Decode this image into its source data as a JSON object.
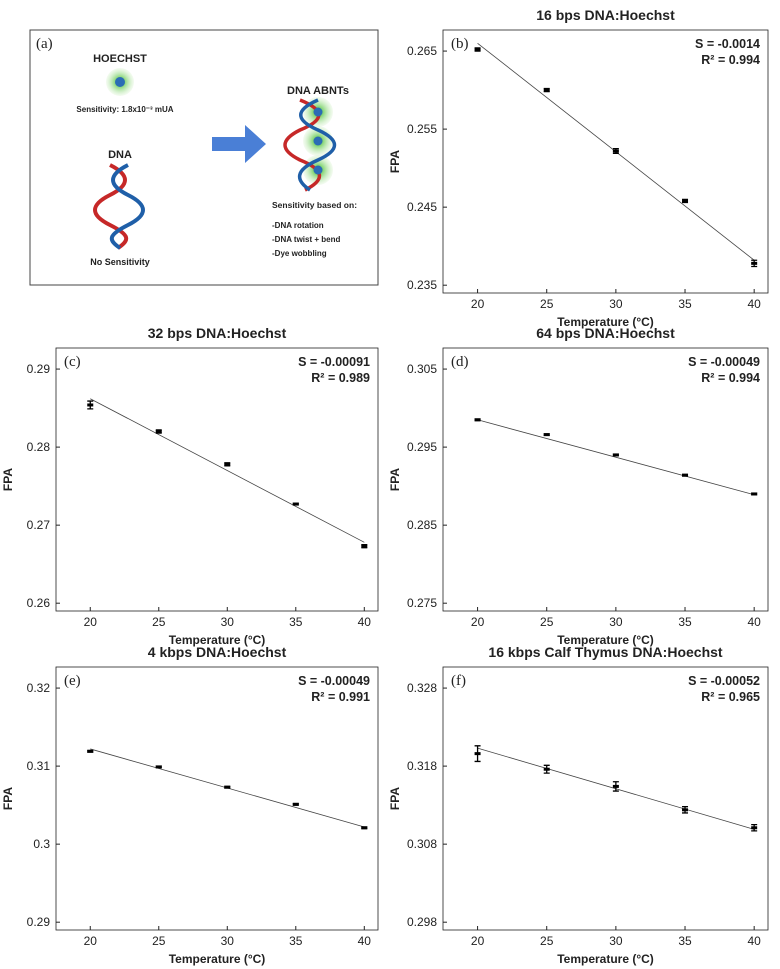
{
  "diagram": {
    "panel_label": "(a)",
    "dye_title": "HOECHST",
    "dye_sensitivity": "Sensitivity: 1.8x10⁻³ mUA",
    "dna_title": "DNA",
    "dna_sensitivity": "No Sensitivity",
    "complex_title": "DNA ABNTs",
    "basis_title": "Sensitivity based on:",
    "basis_items": [
      "-DNA rotation",
      "-DNA twist + bend",
      "-Dye wobbling"
    ]
  },
  "chart_data": [
    {
      "type": "scatter",
      "panel_label": "(b)",
      "title": "16 bps DNA:Hoechst",
      "x_label": "Temperature (°C)",
      "y_label": "FPA",
      "annotations": [
        "S = -0.0014",
        "R² = 0.994"
      ],
      "x": [
        20,
        25,
        30,
        35,
        40
      ],
      "values": [
        0.2652,
        0.26,
        0.2522,
        0.2458,
        0.2378
      ],
      "errors": [
        0.0002,
        0.0002,
        0.0003,
        0.0002,
        0.0004
      ],
      "fit_line": {
        "x": [
          20,
          40
        ],
        "values": [
          0.266,
          0.2382
        ]
      },
      "color": "#000000",
      "xlim": [
        17.5,
        41
      ],
      "xticks": [
        20,
        25,
        30,
        35,
        40
      ],
      "ylim": [
        0.234,
        0.2677
      ],
      "yticks": [
        0.235,
        0.245,
        0.255,
        0.265
      ]
    },
    {
      "type": "scatter",
      "panel_label": "(c)",
      "title": "32 bps DNA:Hoechst",
      "x_label": "Temperature (°C)",
      "y_label": "FPA",
      "annotations": [
        "S = -0.00091",
        "R² = 0.989"
      ],
      "x": [
        20,
        25,
        30,
        35,
        40
      ],
      "values": [
        0.2854,
        0.282,
        0.2778,
        0.2727,
        0.2673
      ],
      "errors": [
        0.0005,
        0.0002,
        0.0002,
        0.0001,
        0.0002
      ],
      "fit_line": {
        "x": [
          20,
          40
        ],
        "values": [
          0.2862,
          0.2678
        ]
      },
      "color": "#000000",
      "xlim": [
        17.5,
        41
      ],
      "xticks": [
        20,
        25,
        30,
        35,
        40
      ],
      "ylim": [
        0.259,
        0.2927
      ],
      "yticks": [
        0.26,
        0.27,
        0.28,
        0.29
      ]
    },
    {
      "type": "scatter",
      "panel_label": "(d)",
      "title": "64 bps DNA:Hoechst",
      "x_label": "Temperature (°C)",
      "y_label": "FPA",
      "annotations": [
        "S = -0.00049",
        "R² = 0.994"
      ],
      "x": [
        20,
        25,
        30,
        35,
        40
      ],
      "values": [
        0.2985,
        0.2966,
        0.294,
        0.2914,
        0.289
      ],
      "errors": [
        0.0001,
        0.0001,
        0.0001,
        0.0001,
        0.0001
      ],
      "fit_line": {
        "x": [
          20,
          40
        ],
        "values": [
          0.2985,
          0.2889
        ]
      },
      "color": "#000000",
      "xlim": [
        17.5,
        41
      ],
      "xticks": [
        20,
        25,
        30,
        35,
        40
      ],
      "ylim": [
        0.274,
        0.3077
      ],
      "yticks": [
        0.275,
        0.285,
        0.295,
        0.305
      ]
    },
    {
      "type": "scatter",
      "panel_label": "(e)",
      "title": "4 kbps DNA:Hoechst",
      "x_label": "Temperature (°C)",
      "y_label": "FPA",
      "annotations": [
        "S = -0.00049",
        "R² = 0.991"
      ],
      "x": [
        20,
        25,
        30,
        35,
        40
      ],
      "values": [
        0.3119,
        0.3099,
        0.3073,
        0.3051,
        0.3021
      ],
      "errors": [
        0.0001,
        0.0001,
        0.0001,
        0.0001,
        0.0001
      ],
      "fit_line": {
        "x": [
          20,
          40
        ],
        "values": [
          0.3122,
          0.3022
        ]
      },
      "color": "#000000",
      "xlim": [
        17.5,
        41
      ],
      "xticks": [
        20,
        25,
        30,
        35,
        40
      ],
      "ylim": [
        0.289,
        0.3227
      ],
      "yticks": [
        0.29,
        0.3,
        0.31,
        0.32
      ]
    },
    {
      "type": "scatter",
      "panel_label": "(f)",
      "title": "16 kbps Calf Thymus DNA:Hoechst",
      "x_label": "Temperature (°C)",
      "y_label": "FPA",
      "annotations": [
        "S = -0.00052",
        "R² = 0.965"
      ],
      "x": [
        20,
        25,
        30,
        35,
        40
      ],
      "values": [
        0.3196,
        0.3176,
        0.3154,
        0.3124,
        0.3101
      ],
      "errors": [
        0.001,
        0.0005,
        0.0006,
        0.0004,
        0.0004
      ],
      "fit_line": {
        "x": [
          20,
          40
        ],
        "values": [
          0.3203,
          0.3099
        ]
      },
      "color": "#000000",
      "xlim": [
        17.5,
        41
      ],
      "xticks": [
        20,
        25,
        30,
        35,
        40
      ],
      "ylim": [
        0.297,
        0.3307
      ],
      "yticks": [
        0.298,
        0.308,
        0.318,
        0.328
      ]
    }
  ]
}
